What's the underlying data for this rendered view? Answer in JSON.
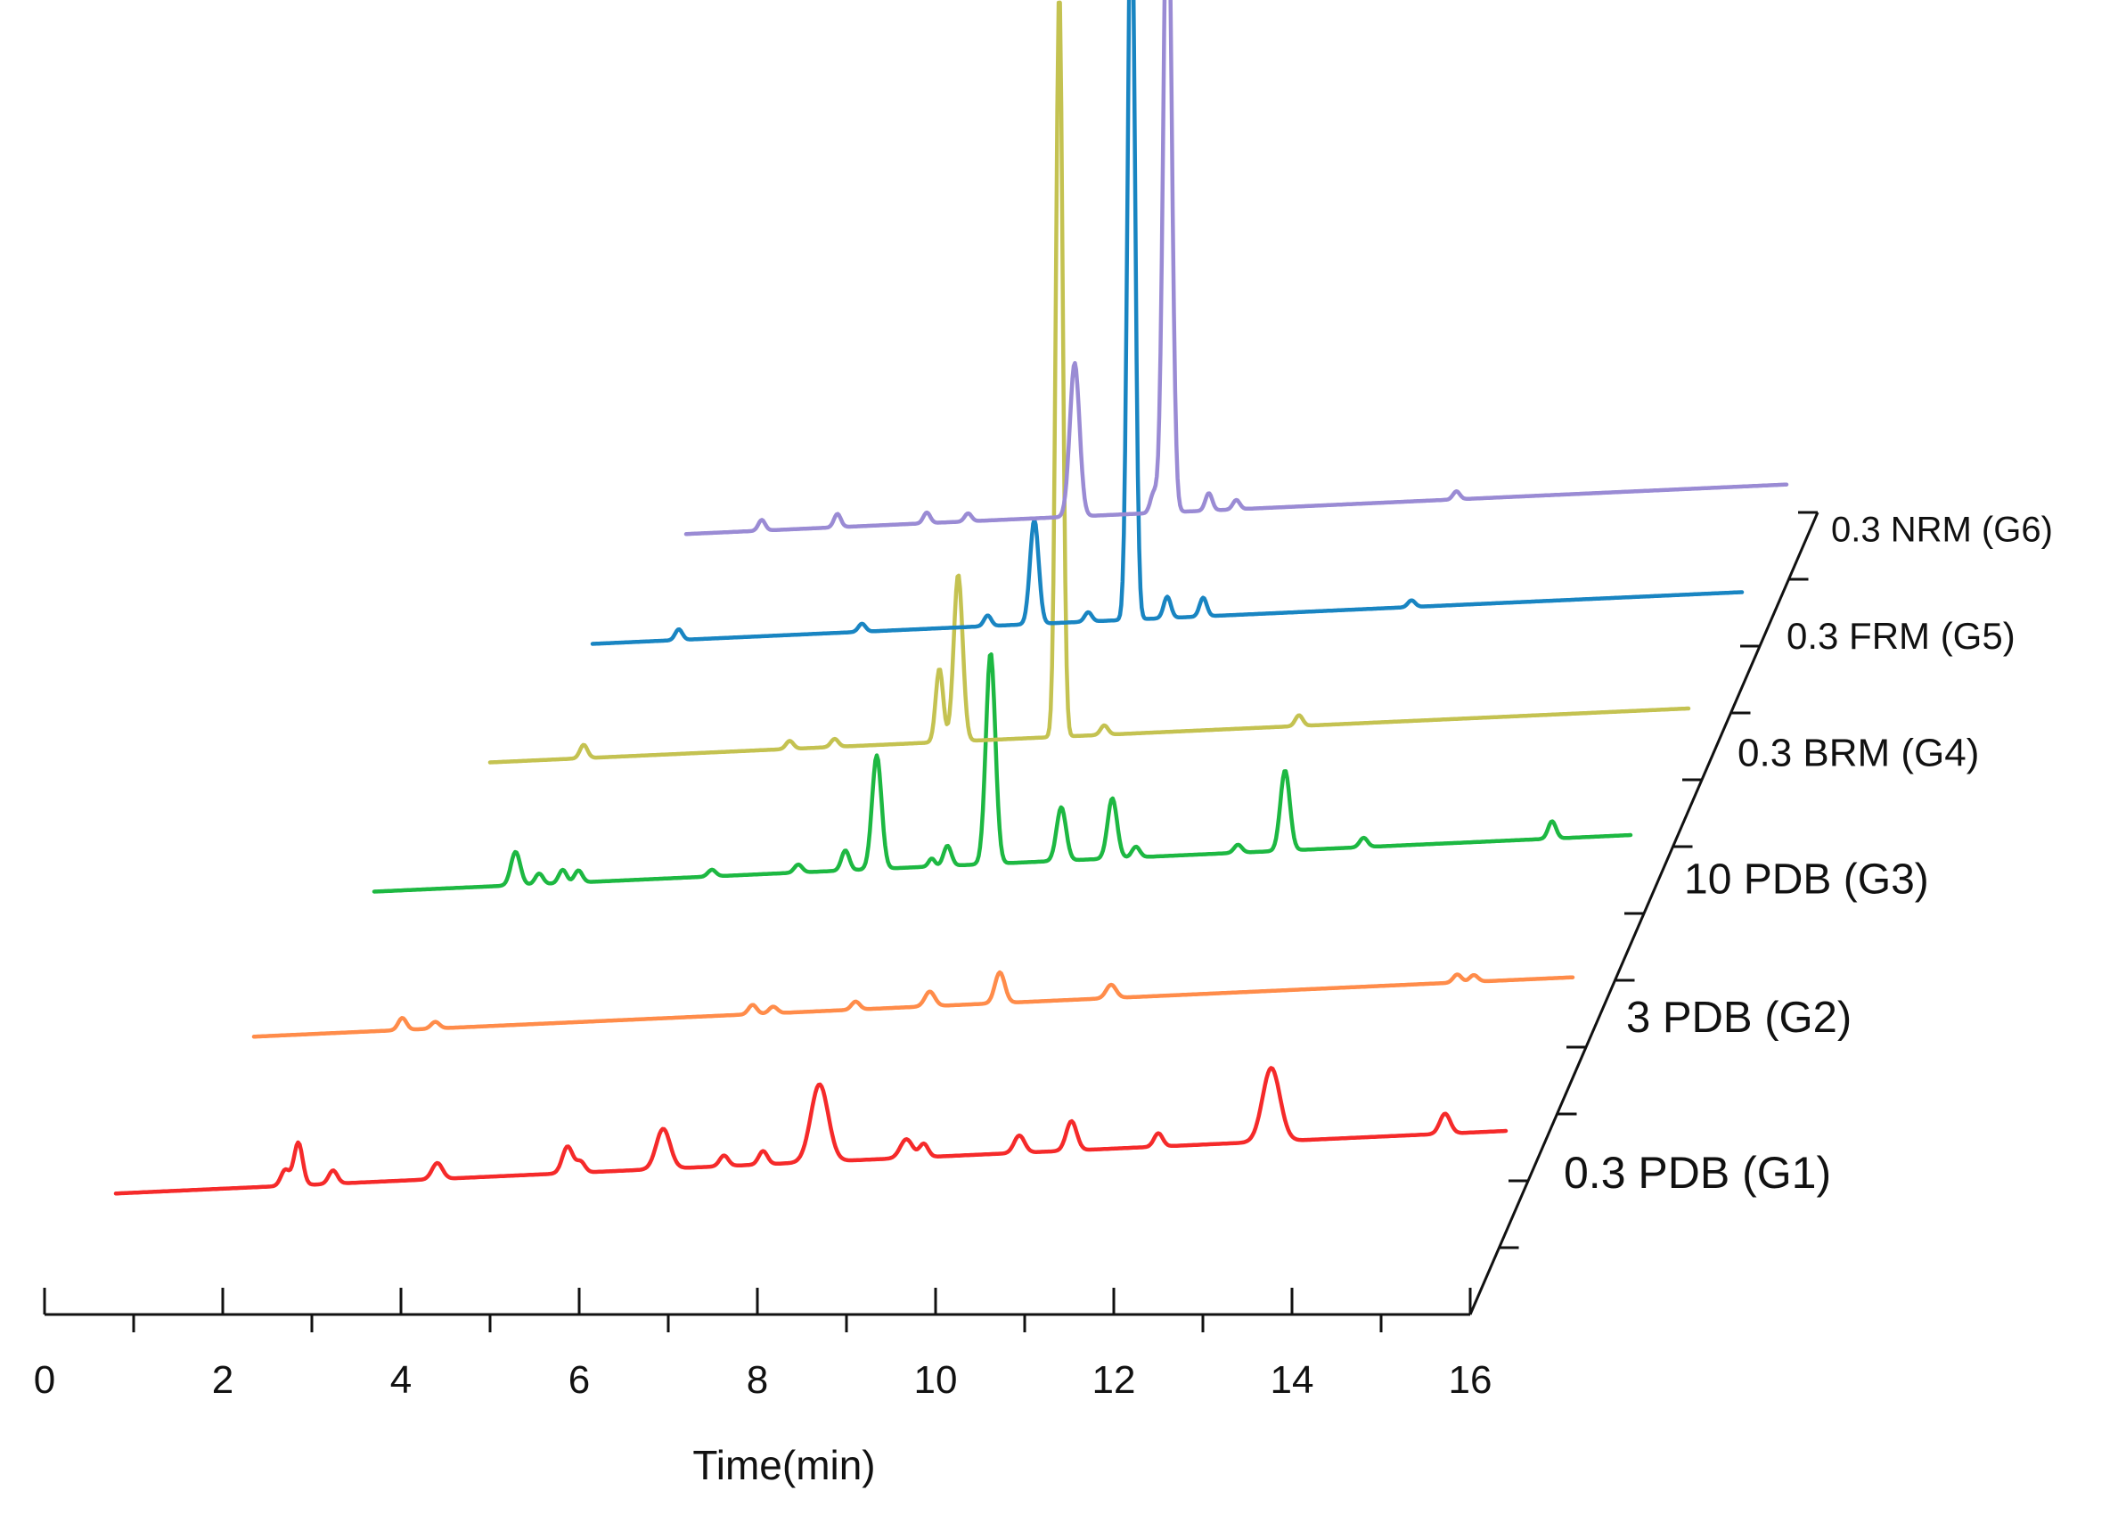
{
  "chart_data": {
    "type": "line",
    "layout": "stacked-waterfall",
    "title": "",
    "xlabel": "Time(min)",
    "ylabel": "",
    "xlim": [
      0,
      16
    ],
    "x_ticks": [
      "0",
      "2",
      "4",
      "6",
      "8",
      "10",
      "12",
      "14",
      "16"
    ],
    "series": [
      {
        "name": "0.3 PDB (G1)",
        "color": "#f52a2a",
        "baseline": 0.25,
        "peaks": [
          [
            1.95,
            1.2,
            0.05
          ],
          [
            2.1,
            3.2,
            0.05
          ],
          [
            2.5,
            1.0,
            0.05
          ],
          [
            3.7,
            1.2,
            0.06
          ],
          [
            5.2,
            2.0,
            0.06
          ],
          [
            5.35,
            0.8,
            0.05
          ],
          [
            6.3,
            3.0,
            0.08
          ],
          [
            7.0,
            0.8,
            0.05
          ],
          [
            7.45,
            1.0,
            0.05
          ],
          [
            8.1,
            5.8,
            0.1
          ],
          [
            9.1,
            1.4,
            0.07
          ],
          [
            9.3,
            1.0,
            0.05
          ],
          [
            10.4,
            1.3,
            0.06
          ],
          [
            11.0,
            2.2,
            0.06
          ],
          [
            12.0,
            1.0,
            0.05
          ],
          [
            13.3,
            5.5,
            0.1
          ],
          [
            15.3,
            1.5,
            0.06
          ]
        ]
      },
      {
        "name": "3 PDB (G2)",
        "color": "#ff8c4a",
        "baseline": 0.25,
        "peaks": [
          [
            1.8,
            0.9,
            0.05
          ],
          [
            2.2,
            0.5,
            0.05
          ],
          [
            6.05,
            0.7,
            0.05
          ],
          [
            6.3,
            0.5,
            0.05
          ],
          [
            7.3,
            0.6,
            0.05
          ],
          [
            8.2,
            1.1,
            0.06
          ],
          [
            9.05,
            2.3,
            0.06
          ],
          [
            10.4,
            1.0,
            0.06
          ],
          [
            14.6,
            0.6,
            0.05
          ],
          [
            14.8,
            0.5,
            0.05
          ]
        ]
      },
      {
        "name": "10 PDB (G3)",
        "color": "#1db842",
        "baseline": 0.3,
        "peaks": [
          [
            1.8,
            2.5,
            0.06
          ],
          [
            2.1,
            0.8,
            0.05
          ],
          [
            2.4,
            1.0,
            0.05
          ],
          [
            2.6,
            0.9,
            0.05
          ],
          [
            4.3,
            0.5,
            0.05
          ],
          [
            5.4,
            0.6,
            0.05
          ],
          [
            6.0,
            1.5,
            0.05
          ],
          [
            6.4,
            8.5,
            0.06
          ],
          [
            7.1,
            0.6,
            0.04
          ],
          [
            7.3,
            1.5,
            0.05
          ],
          [
            7.85,
            15.8,
            0.06
          ],
          [
            8.75,
            4.0,
            0.06
          ],
          [
            9.4,
            4.5,
            0.06
          ],
          [
            9.7,
            0.8,
            0.05
          ],
          [
            11.0,
            0.6,
            0.05
          ],
          [
            11.6,
            6.0,
            0.06
          ],
          [
            12.6,
            0.7,
            0.05
          ],
          [
            15.0,
            1.3,
            0.05
          ]
        ]
      },
      {
        "name": "0.3 BRM (G4)",
        "color": "#c4c251",
        "baseline": 0.3,
        "peaks": [
          [
            1.25,
            1.0,
            0.05
          ],
          [
            4.0,
            0.6,
            0.05
          ],
          [
            4.6,
            0.6,
            0.05
          ],
          [
            6.0,
            5.5,
            0.05
          ],
          [
            6.25,
            12.5,
            0.06
          ],
          [
            7.6,
            56.0,
            0.045
          ],
          [
            8.2,
            0.7,
            0.05
          ],
          [
            10.8,
            0.8,
            0.05
          ]
        ]
      },
      {
        "name": "0.3 FRM (G5)",
        "color": "#1985c2",
        "baseline": 0.3,
        "peaks": [
          [
            1.2,
            0.8,
            0.05
          ],
          [
            3.75,
            0.6,
            0.05
          ],
          [
            5.5,
            0.8,
            0.05
          ],
          [
            6.15,
            7.8,
            0.06
          ],
          [
            6.9,
            0.7,
            0.05
          ],
          [
            7.5,
            57.0,
            0.05
          ],
          [
            8.0,
            1.6,
            0.05
          ],
          [
            8.5,
            1.4,
            0.05
          ],
          [
            11.4,
            0.5,
            0.05
          ]
        ]
      },
      {
        "name": "0.3 NRM (G6)",
        "color": "#9a8bd4",
        "baseline": 0.25,
        "peaks": [
          [
            1.1,
            0.8,
            0.05
          ],
          [
            2.2,
            1.0,
            0.05
          ],
          [
            3.5,
            0.8,
            0.05
          ],
          [
            4.1,
            0.6,
            0.05
          ],
          [
            5.65,
            11.5,
            0.07
          ],
          [
            6.8,
            1.5,
            0.05
          ],
          [
            7.0,
            50.0,
            0.06
          ],
          [
            7.6,
            1.3,
            0.05
          ],
          [
            8.0,
            0.7,
            0.05
          ],
          [
            11.2,
            0.6,
            0.05
          ]
        ]
      }
    ]
  }
}
